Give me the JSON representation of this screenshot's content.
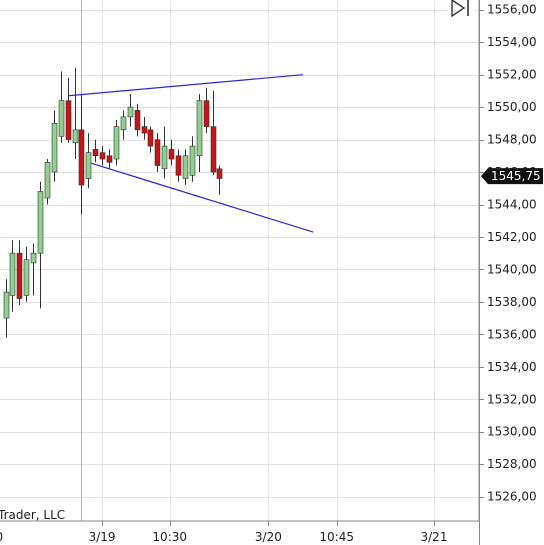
{
  "chart_data": {
    "type": "candlestick",
    "watermark": "Trader, LLC",
    "current_price_label": "1545,75",
    "current_price": 1545.75,
    "y_axis": {
      "min": 1524.5,
      "max": 1556.6,
      "ticks": [
        1526,
        1528,
        1530,
        1532,
        1534,
        1536,
        1538,
        1540,
        1542,
        1544,
        1546,
        1548,
        1550,
        1552,
        1554,
        1556
      ],
      "tick_labels": [
        "1526,00",
        "1528,00",
        "1530,00",
        "1532,00",
        "1534,00",
        "1536,00",
        "1538,00",
        "1540,00",
        "1542,00",
        "1544,00",
        "1546,00",
        "1548,00",
        "1550,00",
        "1552,00",
        "1554,00",
        "1556,00"
      ]
    },
    "x_axis": {
      "labels": [
        {
          "text": "0",
          "bar": -0.9
        },
        {
          "text": "3/19",
          "bar": 14.0
        },
        {
          "text": "10:30",
          "bar": 23.8
        },
        {
          "text": "3/20",
          "bar": 38.1
        },
        {
          "text": "10:45",
          "bar": 48.0
        },
        {
          "text": "3/21",
          "bar": 62.1
        }
      ],
      "major_ticks_at_bars": [
        -0.9,
        14.0,
        23.8,
        38.1,
        48.0,
        62.1
      ],
      "session_break_bar": 10.9
    },
    "grid": true,
    "colors": {
      "up": "#8fd08f",
      "down": "#c81414",
      "wick": "#333333",
      "trendline": "#2a2ad4",
      "grid": "#e2e2e2",
      "axis": "#888888",
      "badge": "#111111"
    },
    "candles": [
      {
        "o": 1537.0,
        "h": 1539.4,
        "l": 1535.8,
        "c": 1538.6
      },
      {
        "o": 1538.4,
        "h": 1541.8,
        "l": 1537.4,
        "c": 1541.0
      },
      {
        "o": 1541.0,
        "h": 1541.8,
        "l": 1537.8,
        "c": 1538.2
      },
      {
        "o": 1538.4,
        "h": 1541.4,
        "l": 1538.0,
        "c": 1540.6
      },
      {
        "o": 1540.4,
        "h": 1541.6,
        "l": 1538.4,
        "c": 1541.0
      },
      {
        "o": 1541.0,
        "h": 1545.4,
        "l": 1537.6,
        "c": 1544.8
      },
      {
        "o": 1544.4,
        "h": 1546.8,
        "l": 1544.0,
        "c": 1546.6
      },
      {
        "o": 1546.0,
        "h": 1549.8,
        "l": 1545.4,
        "c": 1549.0
      },
      {
        "o": 1548.2,
        "h": 1552.2,
        "l": 1547.8,
        "c": 1550.4
      },
      {
        "o": 1550.4,
        "h": 1551.8,
        "l": 1547.8,
        "c": 1548.0
      },
      {
        "o": 1547.8,
        "h": 1552.4,
        "l": 1546.8,
        "c": 1548.6
      },
      {
        "o": 1548.6,
        "h": 1550.8,
        "l": 1543.4,
        "c": 1545.2
      },
      {
        "o": 1545.6,
        "h": 1548.4,
        "l": 1545.0,
        "c": 1547.2
      },
      {
        "o": 1547.4,
        "h": 1548.0,
        "l": 1546.6,
        "c": 1547.0
      },
      {
        "o": 1547.2,
        "h": 1547.6,
        "l": 1546.4,
        "c": 1546.8
      },
      {
        "o": 1547.0,
        "h": 1547.4,
        "l": 1546.2,
        "c": 1546.6
      },
      {
        "o": 1546.8,
        "h": 1549.2,
        "l": 1546.4,
        "c": 1548.8
      },
      {
        "o": 1548.6,
        "h": 1549.8,
        "l": 1548.0,
        "c": 1549.4
      },
      {
        "o": 1549.4,
        "h": 1550.8,
        "l": 1548.8,
        "c": 1550.0
      },
      {
        "o": 1549.8,
        "h": 1550.2,
        "l": 1548.2,
        "c": 1548.6
      },
      {
        "o": 1548.8,
        "h": 1549.4,
        "l": 1548.0,
        "c": 1548.4
      },
      {
        "o": 1548.6,
        "h": 1548.8,
        "l": 1547.2,
        "c": 1547.6
      },
      {
        "o": 1548.0,
        "h": 1548.4,
        "l": 1546.0,
        "c": 1546.4
      },
      {
        "o": 1546.2,
        "h": 1548.8,
        "l": 1545.6,
        "c": 1547.6
      },
      {
        "o": 1547.4,
        "h": 1548.0,
        "l": 1546.4,
        "c": 1546.8
      },
      {
        "o": 1547.0,
        "h": 1547.4,
        "l": 1545.4,
        "c": 1545.8
      },
      {
        "o": 1545.6,
        "h": 1547.4,
        "l": 1545.2,
        "c": 1547.0
      },
      {
        "o": 1545.8,
        "h": 1548.2,
        "l": 1545.4,
        "c": 1547.6
      },
      {
        "o": 1547.0,
        "h": 1550.8,
        "l": 1546.0,
        "c": 1550.4
      },
      {
        "o": 1550.4,
        "h": 1551.2,
        "l": 1548.4,
        "c": 1548.8
      },
      {
        "o": 1548.8,
        "h": 1551.0,
        "l": 1545.8,
        "c": 1546.0
      },
      {
        "o": 1546.2,
        "h": 1546.4,
        "l": 1544.6,
        "c": 1545.6
      }
    ],
    "trendlines": [
      {
        "name": "upper",
        "x1": 9.1,
        "y1": 1550.7,
        "x2": 43.1,
        "y2": 1552.0
      },
      {
        "name": "lower",
        "x1": 12.0,
        "y1": 1546.6,
        "x2": 44.6,
        "y2": 1542.3
      }
    ]
  }
}
